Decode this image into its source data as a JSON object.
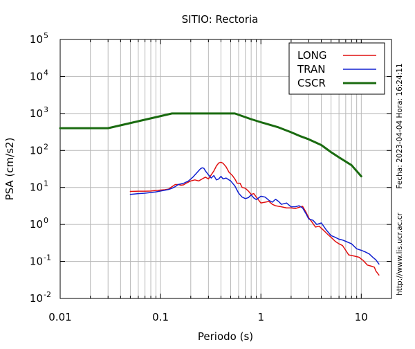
{
  "chart_data": {
    "type": "line",
    "title": "SITIO: Rectoria",
    "xlabel": "Periodo (s)",
    "ylabel": "PSA (cm/s2)",
    "x_scale": "log",
    "y_scale": "log",
    "xlim": [
      0.01,
      20
    ],
    "ylim": [
      0.01,
      100000
    ],
    "x_ticks": [
      {
        "value": 0.01,
        "label": "0.01"
      },
      {
        "value": 0.1,
        "label": "0.1"
      },
      {
        "value": 1,
        "label": "1"
      },
      {
        "value": 10,
        "label": "10"
      }
    ],
    "y_ticks": [
      {
        "value": 0.01,
        "base": "10",
        "exp": "-2"
      },
      {
        "value": 0.1,
        "base": "10",
        "exp": "-1"
      },
      {
        "value": 1,
        "base": "10",
        "exp": "0"
      },
      {
        "value": 10,
        "base": "10",
        "exp": "1"
      },
      {
        "value": 100,
        "base": "10",
        "exp": "2"
      },
      {
        "value": 1000,
        "base": "10",
        "exp": "3"
      },
      {
        "value": 10000,
        "base": "10",
        "exp": "4"
      },
      {
        "value": 100000,
        "base": "10",
        "exp": "5"
      }
    ],
    "grid": true,
    "legend_position": "top-right",
    "series": [
      {
        "name": "LONG",
        "color": "#e01010",
        "stroke_width": 1.5,
        "points": [
          [
            0.05,
            7.8
          ],
          [
            0.06,
            7.9
          ],
          [
            0.07,
            7.9
          ],
          [
            0.08,
            8.0
          ],
          [
            0.09,
            8.3
          ],
          [
            0.1,
            8.5
          ],
          [
            0.11,
            8.7
          ],
          [
            0.12,
            9.0
          ],
          [
            0.13,
            10.5
          ],
          [
            0.14,
            12.0
          ],
          [
            0.15,
            12.0
          ],
          [
            0.16,
            11.5
          ],
          [
            0.17,
            11.8
          ],
          [
            0.18,
            13.0
          ],
          [
            0.2,
            15.0
          ],
          [
            0.22,
            16.0
          ],
          [
            0.24,
            15.0
          ],
          [
            0.26,
            17.0
          ],
          [
            0.28,
            19.0
          ],
          [
            0.3,
            17.0
          ],
          [
            0.32,
            22.0
          ],
          [
            0.34,
            28.0
          ],
          [
            0.36,
            38.0
          ],
          [
            0.38,
            46.0
          ],
          [
            0.4,
            48.0
          ],
          [
            0.42,
            45.0
          ],
          [
            0.45,
            36.0
          ],
          [
            0.48,
            26.0
          ],
          [
            0.52,
            21.0
          ],
          [
            0.55,
            17.0
          ],
          [
            0.58,
            13.0
          ],
          [
            0.62,
            13.0
          ],
          [
            0.65,
            10.0
          ],
          [
            0.7,
            9.5
          ],
          [
            0.75,
            8.0
          ],
          [
            0.8,
            6.5
          ],
          [
            0.85,
            6.8
          ],
          [
            0.9,
            5.5
          ],
          [
            1.0,
            3.8
          ],
          [
            1.1,
            4.0
          ],
          [
            1.2,
            4.2
          ],
          [
            1.3,
            3.5
          ],
          [
            1.4,
            3.2
          ],
          [
            1.6,
            3.0
          ],
          [
            1.8,
            2.8
          ],
          [
            2.0,
            2.8
          ],
          [
            2.2,
            2.7
          ],
          [
            2.4,
            2.9
          ],
          [
            2.6,
            3.1
          ],
          [
            2.8,
            2.2
          ],
          [
            3.0,
            1.5
          ],
          [
            3.2,
            1.2
          ],
          [
            3.5,
            0.85
          ],
          [
            3.8,
            0.9
          ],
          [
            4.2,
            0.7
          ],
          [
            4.6,
            0.55
          ],
          [
            5.0,
            0.45
          ],
          [
            5.5,
            0.35
          ],
          [
            6.0,
            0.3
          ],
          [
            6.5,
            0.27
          ],
          [
            7.0,
            0.2
          ],
          [
            7.5,
            0.15
          ],
          [
            8.5,
            0.14
          ],
          [
            9.5,
            0.13
          ],
          [
            10.5,
            0.105
          ],
          [
            11.5,
            0.08
          ],
          [
            12.5,
            0.075
          ],
          [
            13.5,
            0.07
          ],
          [
            14.0,
            0.055
          ],
          [
            15.0,
            0.043
          ]
        ]
      },
      {
        "name": "TRAN",
        "color": "#1020d0",
        "stroke_width": 1.5,
        "points": [
          [
            0.05,
            6.5
          ],
          [
            0.06,
            6.8
          ],
          [
            0.07,
            7.0
          ],
          [
            0.08,
            7.3
          ],
          [
            0.09,
            7.6
          ],
          [
            0.1,
            8.0
          ],
          [
            0.11,
            8.4
          ],
          [
            0.12,
            8.8
          ],
          [
            0.13,
            9.5
          ],
          [
            0.14,
            10.5
          ],
          [
            0.15,
            12.0
          ],
          [
            0.17,
            13.0
          ],
          [
            0.19,
            15.0
          ],
          [
            0.21,
            19.0
          ],
          [
            0.23,
            25.0
          ],
          [
            0.25,
            32.0
          ],
          [
            0.26,
            34.0
          ],
          [
            0.27,
            33.0
          ],
          [
            0.28,
            28.0
          ],
          [
            0.3,
            22.0
          ],
          [
            0.32,
            18.0
          ],
          [
            0.34,
            21.0
          ],
          [
            0.36,
            16.0
          ],
          [
            0.38,
            17.0
          ],
          [
            0.4,
            20.0
          ],
          [
            0.42,
            17.0
          ],
          [
            0.45,
            18.0
          ],
          [
            0.5,
            15.0
          ],
          [
            0.55,
            11.0
          ],
          [
            0.6,
            7.0
          ],
          [
            0.65,
            5.5
          ],
          [
            0.7,
            5.0
          ],
          [
            0.75,
            5.3
          ],
          [
            0.8,
            6.3
          ],
          [
            0.85,
            5.2
          ],
          [
            0.9,
            4.7
          ],
          [
            1.0,
            5.8
          ],
          [
            1.1,
            5.5
          ],
          [
            1.2,
            4.5
          ],
          [
            1.3,
            4.0
          ],
          [
            1.4,
            4.8
          ],
          [
            1.5,
            4.2
          ],
          [
            1.6,
            3.5
          ],
          [
            1.8,
            3.8
          ],
          [
            2.0,
            3.0
          ],
          [
            2.2,
            3.0
          ],
          [
            2.4,
            3.2
          ],
          [
            2.6,
            2.8
          ],
          [
            2.8,
            2.0
          ],
          [
            3.0,
            1.4
          ],
          [
            3.3,
            1.3
          ],
          [
            3.6,
            1.0
          ],
          [
            4.0,
            1.1
          ],
          [
            4.5,
            0.7
          ],
          [
            5.0,
            0.5
          ],
          [
            5.5,
            0.45
          ],
          [
            6.0,
            0.4
          ],
          [
            6.5,
            0.38
          ],
          [
            7.0,
            0.35
          ],
          [
            8.0,
            0.3
          ],
          [
            9.0,
            0.22
          ],
          [
            10.0,
            0.2
          ],
          [
            11.0,
            0.18
          ],
          [
            12.0,
            0.16
          ],
          [
            13.0,
            0.13
          ],
          [
            14.0,
            0.11
          ],
          [
            15.0,
            0.085
          ]
        ]
      },
      {
        "name": "CSCR",
        "color": "#1a6b10",
        "stroke_width": 3,
        "points": [
          [
            0.01,
            400
          ],
          [
            0.03,
            400
          ],
          [
            0.13,
            1000
          ],
          [
            0.55,
            1000
          ],
          [
            0.8,
            700
          ],
          [
            1.0,
            580
          ],
          [
            1.5,
            420
          ],
          [
            2.0,
            310
          ],
          [
            2.5,
            240
          ],
          [
            3.0,
            200
          ],
          [
            4.0,
            140
          ],
          [
            5.0,
            90
          ],
          [
            6.0,
            65
          ],
          [
            8.0,
            40
          ],
          [
            10.0,
            20
          ]
        ]
      }
    ],
    "side_text": {
      "date": "Fecha: 2023-04-04 Hora: 16:24:11",
      "url": "http://www.lis.ucr.ac.cr"
    }
  }
}
